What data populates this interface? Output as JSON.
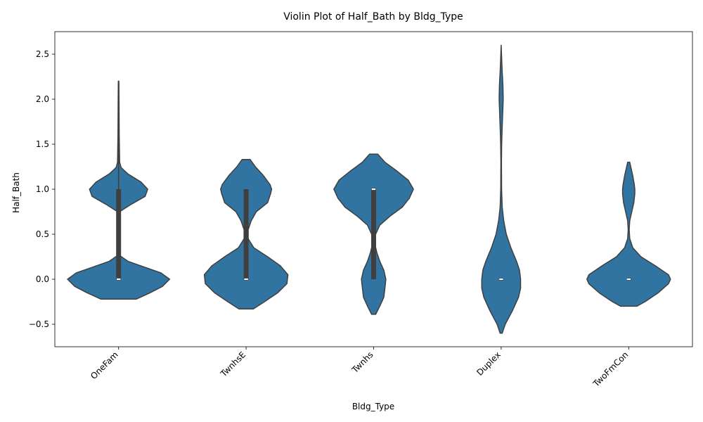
{
  "chart_data": {
    "type": "violin",
    "title": "Violin Plot of Half_Bath by Bldg_Type",
    "xlabel": "Bldg_Type",
    "ylabel": "Half_Bath",
    "categories": [
      "OneFam",
      "TwnhsE",
      "Twnhs",
      "Duplex",
      "TwoFmCon"
    ],
    "ylim": [
      -0.75,
      2.75
    ],
    "yticks": [
      -0.5,
      0.0,
      0.5,
      1.0,
      1.5,
      2.0,
      2.5
    ],
    "ytick_labels": [
      "−0.5",
      "0.0",
      "0.5",
      "1.0",
      "1.5",
      "2.0",
      "2.5"
    ],
    "grid": false,
    "colors": {
      "violin_fill": "#3274a1",
      "violin_edge": "#3f3f3f",
      "box": "#3f3f3f",
      "median": "#ffffff"
    },
    "violins": [
      {
        "category": "OneFam",
        "min": -0.22,
        "max": 2.2,
        "q1": 0.0,
        "median": 0.0,
        "q3": 1.0,
        "whisker_low": 0.0,
        "whisker_high": 2.0,
        "outline": [
          [
            -0.22,
            0.35
          ],
          [
            -0.15,
            0.62
          ],
          [
            -0.08,
            0.86
          ],
          [
            0.0,
            1.0
          ],
          [
            0.07,
            0.83
          ],
          [
            0.14,
            0.48
          ],
          [
            0.2,
            0.18
          ],
          [
            0.26,
            0.03
          ],
          [
            0.4,
            0.0
          ],
          [
            0.6,
            0.0
          ],
          [
            0.75,
            0.02
          ],
          [
            0.83,
            0.24
          ],
          [
            0.92,
            0.52
          ],
          [
            1.0,
            0.57
          ],
          [
            1.08,
            0.44
          ],
          [
            1.17,
            0.18
          ],
          [
            1.24,
            0.05
          ],
          [
            1.3,
            0.02
          ],
          [
            1.6,
            0.012
          ],
          [
            2.0,
            0.008
          ],
          [
            2.2,
            0.006
          ]
        ]
      },
      {
        "category": "TwnhsE",
        "min": -0.33,
        "max": 1.33,
        "q1": 0.0,
        "median": 0.0,
        "q3": 1.0,
        "whisker_low": 0.0,
        "whisker_high": 1.0,
        "outline": [
          [
            -0.33,
            0.14
          ],
          [
            -0.25,
            0.36
          ],
          [
            -0.15,
            0.62
          ],
          [
            -0.05,
            0.8
          ],
          [
            0.05,
            0.82
          ],
          [
            0.15,
            0.67
          ],
          [
            0.25,
            0.42
          ],
          [
            0.35,
            0.15
          ],
          [
            0.45,
            0.04
          ],
          [
            0.55,
            0.04
          ],
          [
            0.65,
            0.1
          ],
          [
            0.75,
            0.2
          ],
          [
            0.85,
            0.42
          ],
          [
            0.95,
            0.48
          ],
          [
            1.0,
            0.5
          ],
          [
            1.05,
            0.47
          ],
          [
            1.15,
            0.34
          ],
          [
            1.25,
            0.18
          ],
          [
            1.33,
            0.08
          ]
        ]
      },
      {
        "category": "Twnhs",
        "min": -0.39,
        "max": 1.39,
        "q1": 0.0,
        "median": 1.0,
        "q3": 1.0,
        "whisker_low": 0.0,
        "whisker_high": 1.0,
        "outline": [
          [
            -0.39,
            0.04
          ],
          [
            -0.3,
            0.12
          ],
          [
            -0.2,
            0.2
          ],
          [
            -0.1,
            0.22
          ],
          [
            0.0,
            0.24
          ],
          [
            0.1,
            0.2
          ],
          [
            0.2,
            0.12
          ],
          [
            0.3,
            0.06
          ],
          [
            0.4,
            0.02
          ],
          [
            0.5,
            0.04
          ],
          [
            0.6,
            0.12
          ],
          [
            0.7,
            0.32
          ],
          [
            0.8,
            0.56
          ],
          [
            0.9,
            0.7
          ],
          [
            1.0,
            0.78
          ],
          [
            1.1,
            0.68
          ],
          [
            1.2,
            0.46
          ],
          [
            1.3,
            0.22
          ],
          [
            1.39,
            0.08
          ]
        ]
      },
      {
        "category": "Duplex",
        "min": -0.6,
        "max": 2.6,
        "q1": 0.0,
        "median": 0.0,
        "q3": 0.0,
        "whisker_low": 0.0,
        "whisker_high": 0.0,
        "outline": [
          [
            -0.6,
            0.02
          ],
          [
            -0.5,
            0.08
          ],
          [
            -0.35,
            0.22
          ],
          [
            -0.2,
            0.34
          ],
          [
            -0.1,
            0.38
          ],
          [
            0.0,
            0.38
          ],
          [
            0.1,
            0.36
          ],
          [
            0.2,
            0.3
          ],
          [
            0.35,
            0.19
          ],
          [
            0.5,
            0.1
          ],
          [
            0.65,
            0.05
          ],
          [
            0.8,
            0.02
          ],
          [
            1.0,
            0.008
          ],
          [
            1.3,
            0.005
          ],
          [
            1.5,
            0.01
          ],
          [
            1.7,
            0.02
          ],
          [
            1.85,
            0.03
          ],
          [
            2.0,
            0.04
          ],
          [
            2.15,
            0.035
          ],
          [
            2.3,
            0.02
          ],
          [
            2.45,
            0.01
          ],
          [
            2.6,
            0.0
          ]
        ]
      },
      {
        "category": "TwoFmCon",
        "min": -0.3,
        "max": 1.3,
        "q1": 0.0,
        "median": 0.0,
        "q3": 0.0,
        "whisker_low": 0.0,
        "whisker_high": 0.0,
        "outline": [
          [
            -0.3,
            0.16
          ],
          [
            -0.25,
            0.32
          ],
          [
            -0.15,
            0.58
          ],
          [
            -0.05,
            0.78
          ],
          [
            0.0,
            0.82
          ],
          [
            0.05,
            0.78
          ],
          [
            0.15,
            0.52
          ],
          [
            0.25,
            0.24
          ],
          [
            0.35,
            0.08
          ],
          [
            0.45,
            0.02
          ],
          [
            0.55,
            0.01
          ],
          [
            0.65,
            0.02
          ],
          [
            0.75,
            0.06
          ],
          [
            0.85,
            0.1
          ],
          [
            0.95,
            0.12
          ],
          [
            1.0,
            0.12
          ],
          [
            1.05,
            0.11
          ],
          [
            1.15,
            0.08
          ],
          [
            1.25,
            0.04
          ],
          [
            1.3,
            0.02
          ]
        ]
      }
    ]
  }
}
